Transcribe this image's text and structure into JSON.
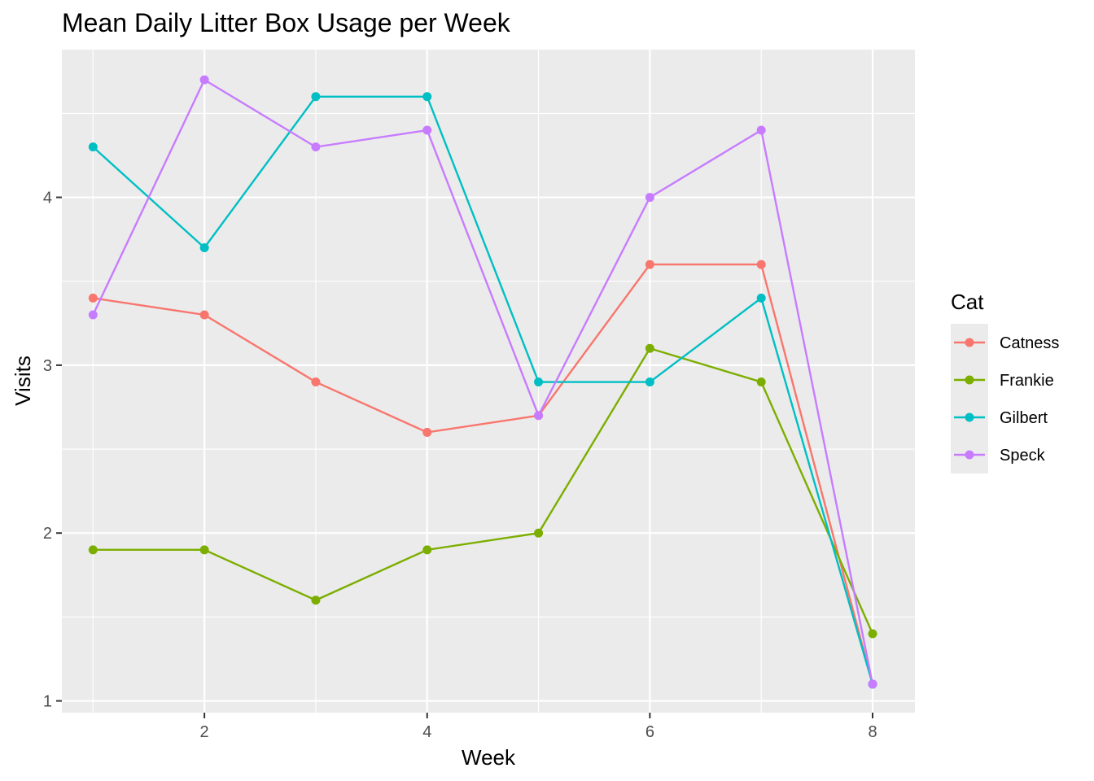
{
  "chart_data": {
    "type": "line",
    "title": "Mean Daily Litter Box Usage per Week",
    "xlabel": "Week",
    "ylabel": "Visits",
    "x": [
      1,
      2,
      3,
      4,
      5,
      6,
      7,
      8
    ],
    "xlim": [
      0.72,
      8.38
    ],
    "ylim": [
      0.93,
      4.88
    ],
    "x_ticks": [
      2,
      4,
      6,
      8
    ],
    "x_ticks_labels": [
      "2",
      "4",
      "6",
      "8"
    ],
    "y_ticks": [
      1,
      2,
      3,
      4
    ],
    "y_ticks_labels": [
      "1",
      "2",
      "3",
      "4"
    ],
    "grid": true,
    "legend": {
      "title": "Cat",
      "position": "right"
    },
    "series": [
      {
        "name": "Catness",
        "color": "#F8766D",
        "values": [
          3.4,
          3.3,
          2.9,
          2.6,
          2.7,
          3.6,
          3.6,
          1.1
        ]
      },
      {
        "name": "Frankie",
        "color": "#7CAE00",
        "values": [
          1.9,
          1.9,
          1.6,
          1.9,
          2.0,
          3.1,
          2.9,
          1.4
        ]
      },
      {
        "name": "Gilbert",
        "color": "#00BFC4",
        "values": [
          4.3,
          3.7,
          4.6,
          4.6,
          2.9,
          2.9,
          3.4,
          1.1
        ]
      },
      {
        "name": "Speck",
        "color": "#C77CFF",
        "values": [
          3.3,
          4.7,
          4.3,
          4.4,
          2.7,
          4.0,
          4.4,
          1.1
        ]
      }
    ]
  }
}
